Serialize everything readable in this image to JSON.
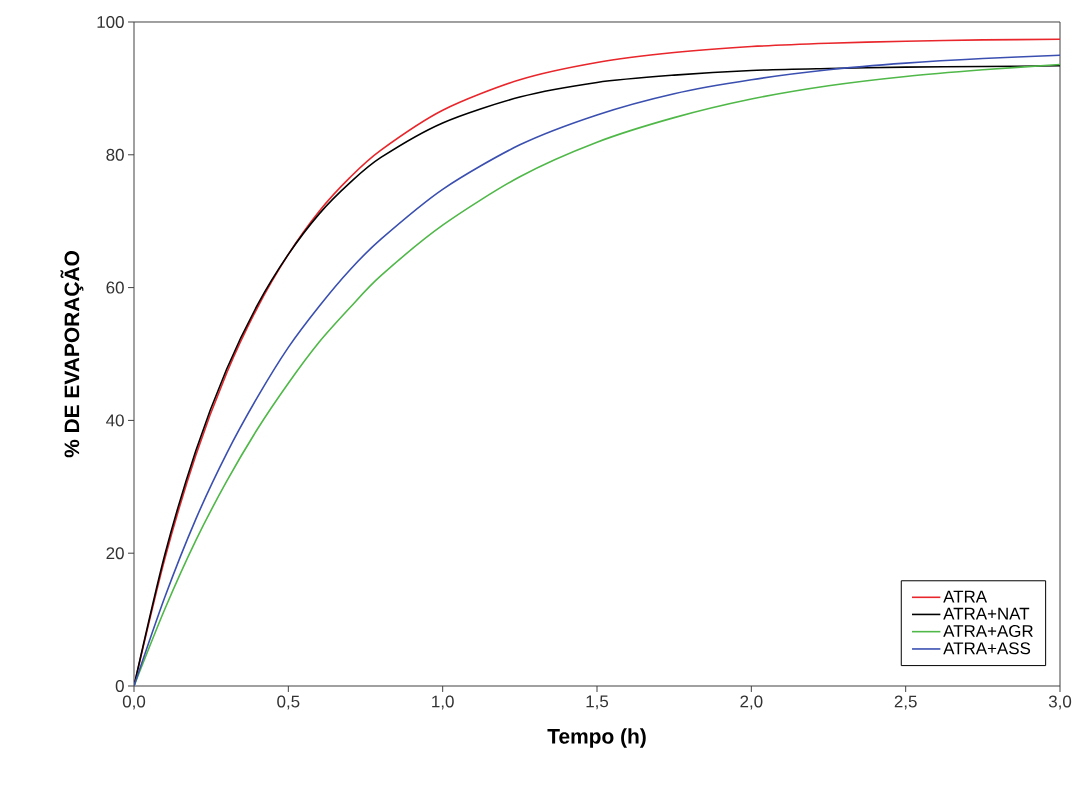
{
  "chart_data": {
    "type": "line",
    "xlabel": "Tempo (h)",
    "ylabel": "% DE EVAPORAÇÃO",
    "x": [
      0,
      0.1,
      0.2,
      0.3,
      0.4,
      0.5,
      0.6,
      0.7,
      0.8,
      1.0,
      1.25,
      1.5,
      1.75,
      2.0,
      2.25,
      2.5,
      2.75,
      3.0
    ],
    "series": [
      {
        "name": "ATRA",
        "color": "#e8262b",
        "values": [
          0,
          19.2,
          34.7,
          47.1,
          57.0,
          65.0,
          71.5,
          76.6,
          80.7,
          86.7,
          91.3,
          93.9,
          95.4,
          96.3,
          96.8,
          97.1,
          97.3,
          97.4
        ]
      },
      {
        "name": "ATRA+NAT",
        "color": "#000000",
        "values": [
          0,
          19.8,
          35.4,
          47.7,
          57.4,
          65.0,
          71.1,
          75.8,
          79.6,
          84.8,
          88.7,
          90.9,
          92.0,
          92.7,
          93.0,
          93.2,
          93.3,
          93.4
        ]
      },
      {
        "name": "ATRA+AGR",
        "color": "#4fb848",
        "values": [
          0,
          11.6,
          21.9,
          30.8,
          38.7,
          45.6,
          51.8,
          57.0,
          61.8,
          69.4,
          76.7,
          81.9,
          85.6,
          88.4,
          90.4,
          91.8,
          92.8,
          93.6
        ]
      },
      {
        "name": "ATRA+ASS",
        "color": "#3a4fb0",
        "values": [
          0,
          13.4,
          25.1,
          35.0,
          43.5,
          51.0,
          57.2,
          62.7,
          67.3,
          74.8,
          81.5,
          86.0,
          89.2,
          91.3,
          92.8,
          93.8,
          94.5,
          95.0
        ]
      }
    ],
    "xlim": [
      0,
      3.0
    ],
    "ylim": [
      0,
      100
    ],
    "xticks": [
      {
        "value": 0,
        "label": "0,0"
      },
      {
        "value": 0.5,
        "label": "0,5"
      },
      {
        "value": 1.0,
        "label": "1,0"
      },
      {
        "value": 1.5,
        "label": "1,5"
      },
      {
        "value": 2.0,
        "label": "2,0"
      },
      {
        "value": 2.5,
        "label": "2,5"
      },
      {
        "value": 3.0,
        "label": "3,0"
      }
    ],
    "yticks": [
      0,
      20,
      40,
      60,
      80,
      100
    ],
    "legend": "bottom right",
    "marker": "none",
    "line_style": "solid"
  }
}
